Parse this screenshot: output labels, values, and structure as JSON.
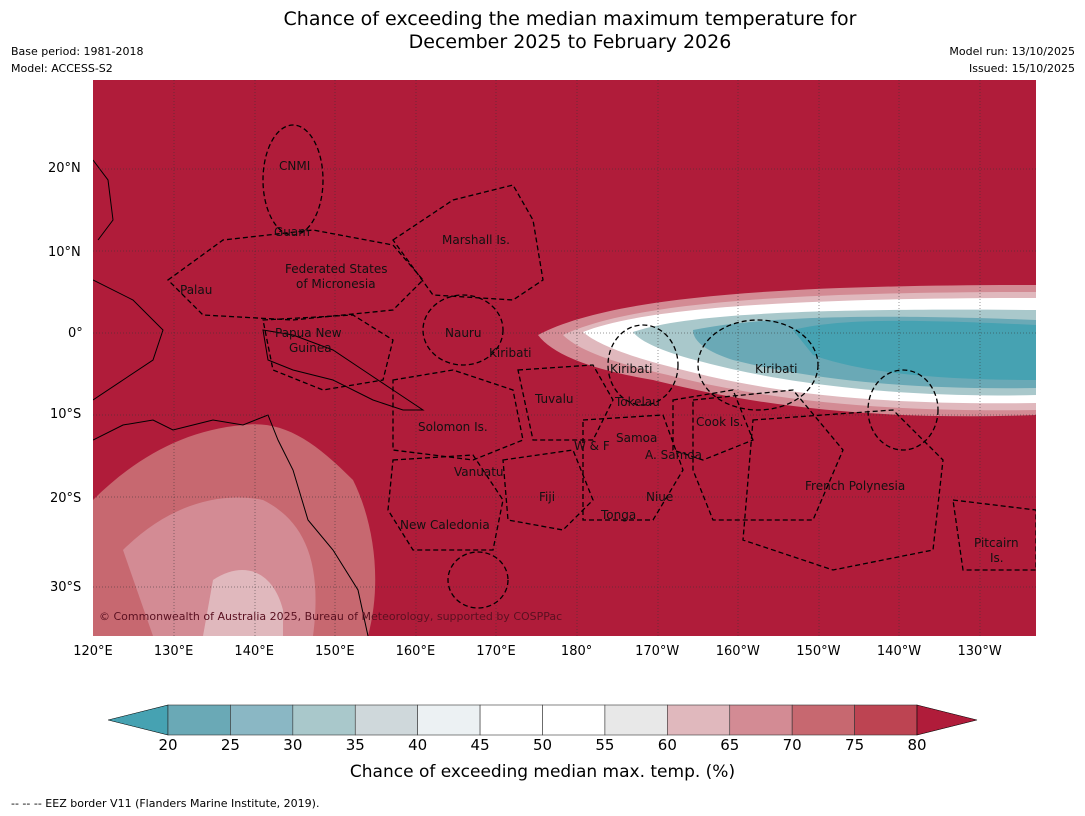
{
  "title_line1": "Chance of exceeding the median maximum temperature for",
  "title_line2": "December 2025 to February 2026",
  "base_period": "Base period: 1981-2018",
  "model": "Model: ACCESS-S2",
  "model_run": "Model run: 13/10/2025",
  "issued": "Issued: 15/10/2025",
  "copyright": "© Commonwealth of Australia 2025, Bureau of Meteorology, supported by COSPPac",
  "lat_ticks": [
    "20°N",
    "10°N",
    "0°",
    "10°S",
    "20°S",
    "30°S"
  ],
  "lon_ticks": [
    "120°E",
    "130°E",
    "140°E",
    "150°E",
    "160°E",
    "170°E",
    "180°",
    "170°W",
    "160°W",
    "150°W",
    "140°W",
    "130°W"
  ],
  "regions": [
    "CNMI",
    "Guam",
    "Marshall Is.",
    "Federated States",
    "of Micronesia",
    "Palau",
    "Papua New",
    "Guinea",
    "Nauru",
    "Kiribati",
    "Kiribati",
    "Kiribati",
    "Tuvalu",
    "Tokelau",
    "Solomon Is.",
    "Cook Is.",
    "Samoa",
    "W & F",
    "A. Samoa",
    "Vanuatu",
    "Fiji",
    "Niue",
    "Tonga",
    "French Polynesia",
    "New Caledonia",
    "Pitcairn",
    "Is."
  ],
  "colorbar": {
    "ticks": [
      "20",
      "25",
      "30",
      "35",
      "40",
      "45",
      "50",
      "55",
      "60",
      "65",
      "70",
      "75",
      "80"
    ],
    "colors": [
      "#6aa9b6",
      "#8ab7c4",
      "#a9c8cb",
      "#cfd8db",
      "#ecf1f3",
      "#ffffff",
      "#ffffff",
      "#e8e8e8",
      "#e0b8bd",
      "#d38b94",
      "#c76870",
      "#bd4452"
    ],
    "under_color": "#46a2b2",
    "over_color": "#b01c3a",
    "label": "Chance of exceeding median max. temp. (%)"
  },
  "footnote": "--  --  -- EEZ border V11 (Flanders Marine Institute, 2019)."
}
